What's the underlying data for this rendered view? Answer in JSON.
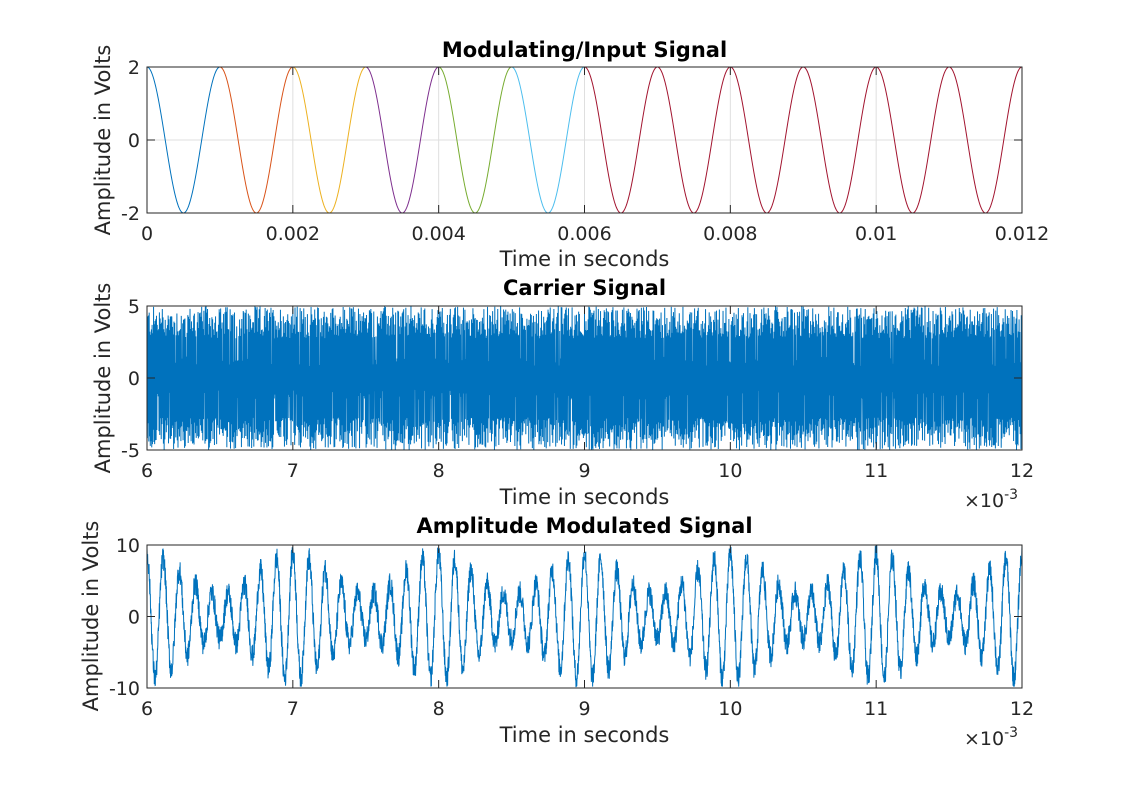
{
  "chart_data": [
    {
      "type": "line",
      "title": "Modulating/Input Signal",
      "xlabel": "Time in seconds",
      "ylabel": "Amplitude in Volts",
      "xlim": [
        0,
        0.012
      ],
      "ylim": [
        -2,
        2
      ],
      "xticks": [
        0,
        0.002,
        0.004,
        0.006,
        0.008,
        0.01,
        0.012
      ],
      "xtick_labels": [
        "0",
        "0.002",
        "0.004",
        "0.006",
        "0.008",
        "0.01",
        "0.012"
      ],
      "yticks": [
        -2,
        0,
        2
      ],
      "ytick_labels": [
        "-2",
        "0",
        "2"
      ],
      "grid": true,
      "x_exponent_label": "",
      "waveform": {
        "kind": "cosine",
        "amplitude": 2,
        "frequency_hz": 1000
      },
      "series": [
        {
          "x_range": [
            0,
            0.001
          ],
          "color": "#0072bd"
        },
        {
          "x_range": [
            0.001,
            0.002
          ],
          "color": "#d95319"
        },
        {
          "x_range": [
            0.002,
            0.003
          ],
          "color": "#edb120"
        },
        {
          "x_range": [
            0.003,
            0.004
          ],
          "color": "#7e2f8e"
        },
        {
          "x_range": [
            0.004,
            0.005
          ],
          "color": "#77ac30"
        },
        {
          "x_range": [
            0.005,
            0.006
          ],
          "color": "#4dbeee"
        },
        {
          "x_range": [
            0.006,
            0.012
          ],
          "color": "#a2142f"
        }
      ]
    },
    {
      "type": "line",
      "title": "Carrier Signal",
      "xlabel": "Time in seconds",
      "ylabel": "Amplitude in Volts",
      "xlim": [
        0.006,
        0.012
      ],
      "ylim": [
        -5,
        5
      ],
      "xticks": [
        0.006,
        0.007,
        0.008,
        0.009,
        0.01,
        0.011,
        0.012
      ],
      "xtick_labels": [
        "6",
        "7",
        "8",
        "9",
        "10",
        "11",
        "12"
      ],
      "yticks": [
        -5,
        0,
        5
      ],
      "ytick_labels": [
        "-5",
        "0",
        "5"
      ],
      "grid": false,
      "x_exponent_label": "×10",
      "x_exponent_power": "-3",
      "waveform": {
        "kind": "sine",
        "amplitude": 5,
        "frequency_hz": 100000
      },
      "series": [
        {
          "color": "#0072bd"
        }
      ]
    },
    {
      "type": "line",
      "title": "Amplitude Modulated Signal",
      "xlabel": "Time in seconds",
      "ylabel": "Amplitude in Volts",
      "xlim": [
        0.006,
        0.012
      ],
      "ylim": [
        -10,
        10
      ],
      "xticks": [
        0.006,
        0.007,
        0.008,
        0.009,
        0.01,
        0.011,
        0.012
      ],
      "xtick_labels": [
        "6",
        "7",
        "8",
        "9",
        "10",
        "11",
        "12"
      ],
      "yticks": [
        -10,
        0,
        10
      ],
      "ytick_labels": [
        "-10",
        "0",
        "10"
      ],
      "grid": false,
      "x_exponent_label": "×10",
      "x_exponent_power": "-3",
      "waveform": {
        "kind": "modulated",
        "amplitude_peak": 10,
        "envelope_period_s": 0.001
      },
      "series": [
        {
          "color": "#0072bd"
        }
      ]
    }
  ]
}
